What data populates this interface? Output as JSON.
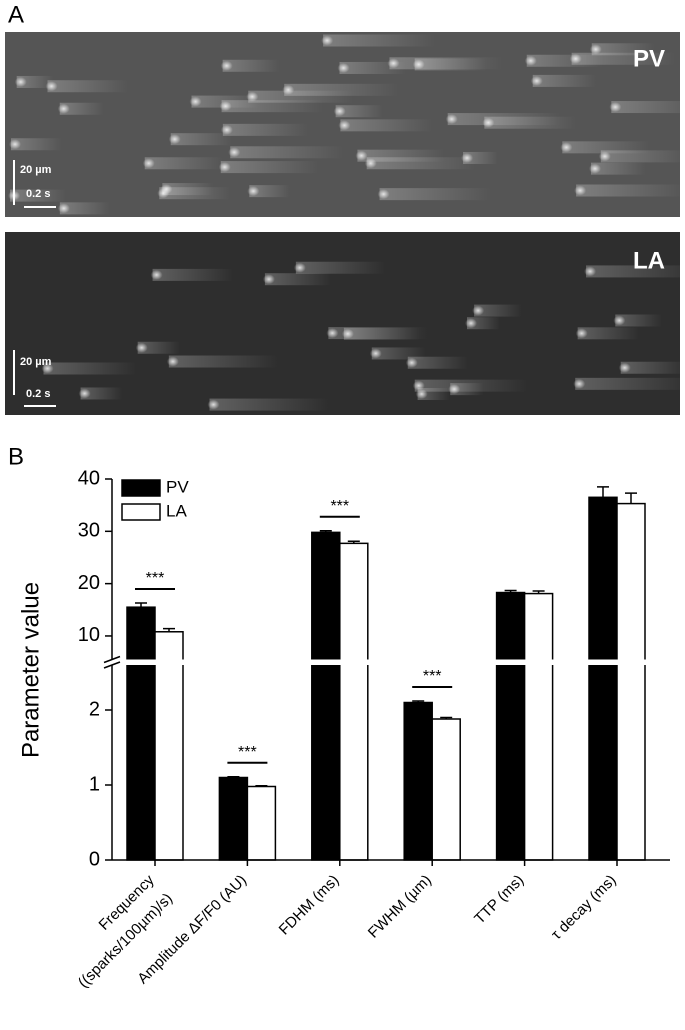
{
  "panel_a": {
    "label": "A",
    "images": [
      {
        "label": "PV",
        "scale_y": "20 µm",
        "scale_x": "0.2 s"
      },
      {
        "label": "LA",
        "scale_y": "20 µm",
        "scale_x": "0.2 s"
      }
    ]
  },
  "chart_data": {
    "type": "bar",
    "label": "B",
    "ylabel": "Parameter value",
    "categories": [
      [
        "Frequency",
        "((sparks/100µm)/s)"
      ],
      [
        "Amplitude ΔF/F0 (AU)"
      ],
      [
        "FDHM (ms)"
      ],
      [
        "FWHM (µm)"
      ],
      [
        "TTP (ms)"
      ],
      [
        "τ decay (ms)"
      ]
    ],
    "category_axis": [
      "upper",
      "lower",
      "upper",
      "lower",
      "upper",
      "upper"
    ],
    "series": [
      {
        "name": "PV",
        "color": "#000000",
        "values": [
          15.5,
          1.1,
          29.8,
          2.1,
          18.3,
          36.5
        ],
        "errors": [
          0.8,
          0.01,
          0.3,
          0.02,
          0.4,
          2.0
        ]
      },
      {
        "name": "LA",
        "color": "#ffffff",
        "values": [
          10.8,
          0.98,
          27.7,
          1.88,
          18.1,
          35.3
        ],
        "errors": [
          0.6,
          0.01,
          0.4,
          0.02,
          0.5,
          2.0
        ]
      }
    ],
    "significance": [
      "***",
      "***",
      "***",
      "***",
      null,
      null
    ],
    "ylim": [
      0,
      2.6
    ],
    "yticks": [
      0,
      1,
      2
    ],
    "y2lim": [
      5.5,
      40
    ],
    "y2ticks": [
      10,
      20,
      30,
      40
    ],
    "legend": "top-left"
  }
}
